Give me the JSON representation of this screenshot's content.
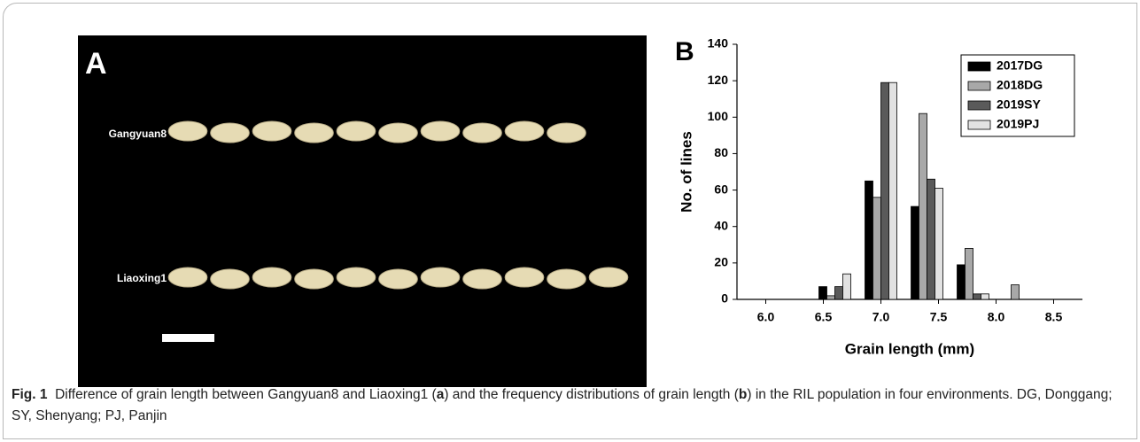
{
  "figure": {
    "panel_a": {
      "label": "A",
      "grain_labels": [
        "Gangyuan8",
        "Liaoxing1"
      ]
    },
    "panel_b": {
      "label": "B"
    }
  },
  "chart_data": {
    "type": "grouped-bar",
    "x_label": "Grain length (mm)",
    "y_label": "No. of lines",
    "x": [
      6.6,
      7.0,
      7.4,
      7.8,
      8.2
    ],
    "series": [
      {
        "name": "2017DG",
        "color": "#000000",
        "values": [
          7,
          65,
          51,
          19,
          0
        ]
      },
      {
        "name": "2018DG",
        "color": "#a8a8a8",
        "values": [
          2,
          56,
          102,
          28,
          8
        ]
      },
      {
        "name": "2019SY",
        "color": "#5a5a5a",
        "values": [
          7,
          119,
          66,
          3,
          0
        ]
      },
      {
        "name": "2019PJ",
        "color": "#e2e2e2",
        "values": [
          14,
          119,
          61,
          3,
          0
        ]
      }
    ],
    "xlim": [
      5.75,
      8.75
    ],
    "xticks": [
      {
        "value": 6,
        "label": "6.0"
      },
      6.5,
      {
        "value": 7,
        "label": "7.0"
      },
      7.5,
      {
        "value": 8,
        "label": "8.0"
      },
      8.5
    ],
    "ylim": [
      0,
      140
    ],
    "yticks": [
      0,
      20,
      40,
      60,
      80,
      100,
      120,
      140
    ],
    "legend": "top-right",
    "grid": false
  },
  "caption": {
    "label": "Fig. 1",
    "parts": [
      "Difference of grain length between Gangyuan8 and Liaoxing1 (",
      "a",
      ") and the frequency distributions of grain length (",
      "b",
      ") in the RIL population in four environments. DG, Donggang; SY, Shenyang; PJ, Panjin"
    ]
  }
}
